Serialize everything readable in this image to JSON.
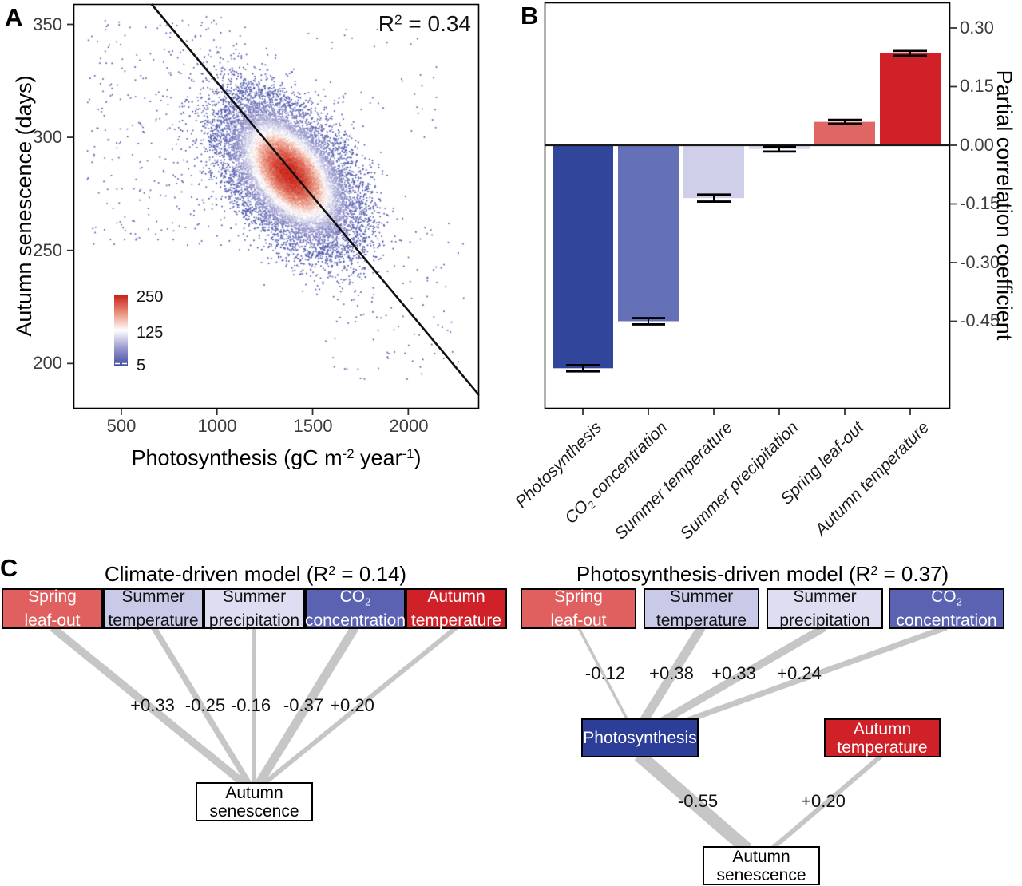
{
  "panels": {
    "a": {
      "label": "A",
      "y_axis_title": "Autumn senescence (days)",
      "x_axis_title": {
        "pre": "Photosynthesis (gC m",
        "sup1": "-2",
        "mid": " year",
        "sup2": "-1",
        "post": ")"
      },
      "annotation": {
        "pre": "R",
        "sup": "2",
        "post": " = 0.34"
      }
    },
    "b": {
      "label": "B",
      "y_axis_title": "Partial correlation coefficient"
    },
    "c": {
      "label": "C"
    }
  },
  "chart_data": [
    {
      "id": "autumn-senescence-vs-photosynthesis",
      "type": "scatter",
      "style": "density-colored-scatter",
      "xlabel": "Photosynthesis (gC m-2 year-1)",
      "ylabel": "Autumn senescence (days)",
      "annotation": "R2 = 0.34",
      "r_squared": 0.34,
      "xlim": [
        250,
        2370
      ],
      "ylim": [
        180,
        359
      ],
      "xticks": [
        500,
        1000,
        1500,
        2000
      ],
      "xtick_labels": [
        "500",
        "1000",
        "1500",
        "2000"
      ],
      "yticks": [
        350,
        300,
        250,
        200
      ],
      "ytick_labels": [
        "350",
        "300",
        "250",
        "200"
      ],
      "grid": false,
      "regression_line": {
        "slope": -0.101,
        "intercept": 425.4
      },
      "density_cluster": {
        "center_x": 1380,
        "center_y": 284,
        "sd_x": 165,
        "sd_y": 15.6,
        "corr": -0.5,
        "n": 15000
      },
      "outlier_regions": [
        {
          "shape": "halo",
          "min_sigma": 2.2,
          "n": 650
        },
        {
          "shape": "box",
          "x_range": [
            320,
            1150
          ],
          "y_range": [
            252,
            354
          ],
          "n": 360
        },
        {
          "shape": "box",
          "x_range": [
            1550,
            2300
          ],
          "y_range": [
            192,
            262
          ],
          "n": 110
        },
        {
          "shape": "box",
          "x_range": [
            1450,
            2150
          ],
          "y_range": [
            300,
            348
          ],
          "n": 45
        }
      ],
      "colorbar": {
        "values": [
          250,
          125,
          5
        ],
        "tick_labels": [
          "250",
          "125",
          "5"
        ],
        "gradient_stops": [
          "#c9241a",
          "#e8907c",
          "#ffffff",
          "#9a99cd",
          "#434ea6"
        ]
      }
    },
    {
      "id": "partial-correlations",
      "type": "bar",
      "categories": [
        {
          "pre": "Photosynthesis",
          "sub": "",
          "post": ""
        },
        {
          "pre": "CO",
          "sub": "2",
          "post": " concentration"
        },
        {
          "pre": "Summer temperature",
          "sub": "",
          "post": ""
        },
        {
          "pre": "Summer precipitation",
          "sub": "",
          "post": ""
        },
        {
          "pre": "Spring leaf-out",
          "sub": "",
          "post": ""
        },
        {
          "pre": "Autumn temperature",
          "sub": "",
          "post": ""
        }
      ],
      "values": [
        -0.57,
        -0.45,
        -0.135,
        -0.01,
        0.06,
        0.235
      ],
      "errors": [
        0.008,
        0.008,
        0.009,
        0.006,
        0.005,
        0.006
      ],
      "bar_colors": [
        "#31459b",
        "#6471b6",
        "#cfcfe9",
        "#dddcf0",
        "#e06565",
        "#d02028"
      ],
      "ylabel": "Partial correlation coefficient",
      "ytick_values": [
        0.3,
        0.15,
        0.0,
        -0.15,
        -0.3,
        -0.45
      ],
      "ytick_labels": [
        "0.30",
        "0.15",
        "0.00",
        "-0.15",
        "-0.30",
        "-0.45"
      ],
      "ylim": [
        -0.62,
        0.33
      ],
      "grid": false,
      "legend": "none"
    }
  ],
  "diagrams": {
    "left": {
      "title": {
        "pre": "Climate-driven model (R",
        "sup": "2",
        "post": " = 0.14)"
      },
      "r_squared": 0.14,
      "predictors": [
        {
          "line1": "Spring",
          "line1_sub": "",
          "line2": "leaf-out",
          "fill": "#e06060",
          "text": "#ffffff",
          "coef": 0.33,
          "coef_label": "+0.33"
        },
        {
          "line1": "Summer",
          "line1_sub": "",
          "line2": "temperature",
          "fill": "#c9c9e8",
          "text": "#111111",
          "coef": -0.25,
          "coef_label": "-0.25"
        },
        {
          "line1": "Summer",
          "line1_sub": "",
          "line2": "precipitation",
          "fill": "#deddf1",
          "text": "#111111",
          "coef": -0.16,
          "coef_label": "-0.16"
        },
        {
          "line1": "CO",
          "line1_sub": "2",
          "line2": "concentration",
          "fill": "#5b62b1",
          "text": "#ffffff",
          "coef": -0.37,
          "coef_label": "-0.37"
        },
        {
          "line1": "Autumn",
          "line1_sub": "",
          "line2": "temperature",
          "fill": "#d02028",
          "text": "#ffffff",
          "coef": 0.2,
          "coef_label": "+0.20"
        }
      ],
      "outcome": {
        "line1": "Autumn",
        "line2": "senescence"
      }
    },
    "right": {
      "title": {
        "pre": "Photosynthesis-driven model (R",
        "sup": "2",
        "post": " = 0.37)"
      },
      "r_squared": 0.37,
      "predictors": [
        {
          "line1": "Spring",
          "line1_sub": "",
          "line2": "leaf-out",
          "fill": "#e06060",
          "text": "#ffffff",
          "coef": -0.12,
          "coef_label": "-0.12"
        },
        {
          "line1": "Summer",
          "line1_sub": "",
          "line2": "temperature",
          "fill": "#c9c9e8",
          "text": "#111111",
          "coef": 0.38,
          "coef_label": "+0.38"
        },
        {
          "line1": "Summer",
          "line1_sub": "",
          "line2": "precipitation",
          "fill": "#deddf1",
          "text": "#111111",
          "coef": 0.33,
          "coef_label": "+0.33"
        },
        {
          "line1": "CO",
          "line1_sub": "2",
          "line2": "concentration",
          "fill": "#5b62b1",
          "text": "#ffffff",
          "coef": 0.24,
          "coef_label": "+0.24"
        }
      ],
      "mediator": {
        "label": "Photosynthesis",
        "fill": "#2c3e97",
        "text": "#ffffff"
      },
      "mediator_edge": {
        "coef": -0.55,
        "coef_label": "-0.55"
      },
      "direct": {
        "line1": "Autumn",
        "line2": "temperature",
        "fill": "#d02028",
        "text": "#ffffff",
        "coef": 0.2,
        "coef_label": "+0.20"
      },
      "outcome": {
        "line1": "Autumn",
        "line2": "senescence"
      }
    },
    "edge_color": "#c6c6c6"
  }
}
